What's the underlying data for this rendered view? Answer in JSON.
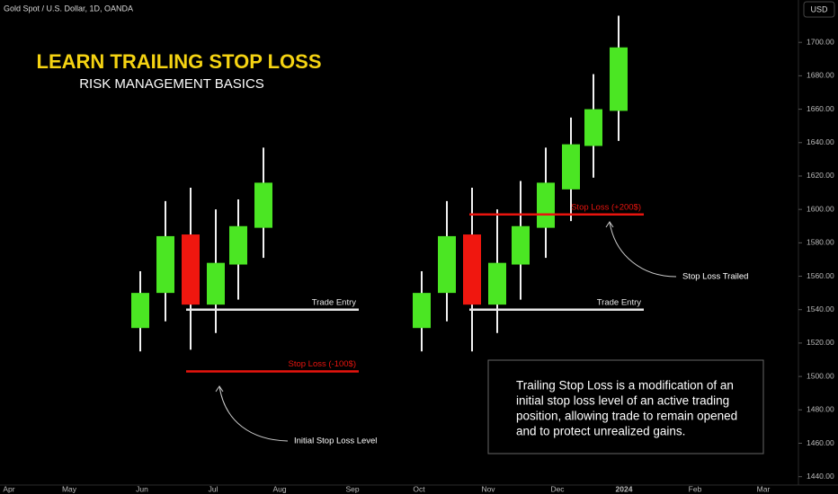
{
  "chart_data": {
    "type": "candlestick",
    "header": "Gold Spot / U.S. Dollar, 1D, OANDA",
    "currency": "USD",
    "title": "LEARN TRAILING STOP LOSS",
    "subtitle": "RISK MANAGEMENT BASICS",
    "up_color": "#4be623",
    "down_color": "#f0170f",
    "ylim": [
      1435,
      1720
    ],
    "yticks": [
      {
        "value": 1440,
        "label": "1440.00"
      },
      {
        "value": 1460,
        "label": "1460.00"
      },
      {
        "value": 1480,
        "label": "1480.00"
      },
      {
        "value": 1500,
        "label": "1500.00"
      },
      {
        "value": 1520,
        "label": "1520.00"
      },
      {
        "value": 1540,
        "label": "1540.00"
      },
      {
        "value": 1560,
        "label": "1560.00"
      },
      {
        "value": 1580,
        "label": "1580.00"
      },
      {
        "value": 1600,
        "label": "1600.00"
      },
      {
        "value": 1620,
        "label": "1620.00"
      },
      {
        "value": 1640,
        "label": "1640.00"
      },
      {
        "value": 1660,
        "label": "1660.00"
      },
      {
        "value": 1680,
        "label": "1680.00"
      },
      {
        "value": 1700,
        "label": "1700.00"
      }
    ],
    "xtick_labels": [
      "Apr",
      "May",
      "Jun",
      "Jul",
      "Aug",
      "Sep",
      "Oct",
      "Nov",
      "Dec",
      "2024",
      "Feb",
      "Mar"
    ],
    "groups": [
      {
        "candles": [
          {
            "open": 1529,
            "high": 1563,
            "low": 1515,
            "close": 1550
          },
          {
            "open": 1550,
            "high": 1605,
            "low": 1533,
            "close": 1584
          },
          {
            "open": 1585,
            "high": 1613,
            "low": 1516,
            "close": 1543
          },
          {
            "open": 1543,
            "high": 1600,
            "low": 1526,
            "close": 1568
          },
          {
            "open": 1567,
            "high": 1606,
            "low": 1546,
            "close": 1590
          },
          {
            "open": 1589,
            "high": 1637,
            "low": 1571,
            "close": 1616
          }
        ],
        "levels": [
          {
            "label": "Trade Entry",
            "value": 1540,
            "color": "#e6e6e6"
          },
          {
            "label": "Stop Loss (-100$)",
            "value": 1503,
            "color": "#e8140e"
          }
        ],
        "annotation": "Initial Stop Loss Level"
      },
      {
        "candles": [
          {
            "open": 1529,
            "high": 1563,
            "low": 1515,
            "close": 1550
          },
          {
            "open": 1550,
            "high": 1605,
            "low": 1533,
            "close": 1584
          },
          {
            "open": 1585,
            "high": 1613,
            "low": 1515,
            "close": 1543
          },
          {
            "open": 1543,
            "high": 1600,
            "low": 1526,
            "close": 1568
          },
          {
            "open": 1567,
            "high": 1617,
            "low": 1546,
            "close": 1590
          },
          {
            "open": 1589,
            "high": 1637,
            "low": 1571,
            "close": 1616
          },
          {
            "open": 1612,
            "high": 1655,
            "low": 1593,
            "close": 1639
          },
          {
            "open": 1638,
            "high": 1681,
            "low": 1619,
            "close": 1660
          },
          {
            "open": 1659,
            "high": 1716,
            "low": 1641,
            "close": 1697
          }
        ],
        "levels": [
          {
            "label": "Trade Entry",
            "value": 1540,
            "color": "#e6e6e6"
          },
          {
            "label": "Stop Loss (+200$)",
            "value": 1597,
            "color": "#e8140e"
          }
        ],
        "annotation": "Stop Loss Trailed"
      }
    ],
    "note_lines": [
      "Trailing Stop Loss is a modification of an",
      "initial stop loss level of an active trading",
      "position, allowing trade to remain opened",
      "and to protect unrealized gains."
    ]
  }
}
